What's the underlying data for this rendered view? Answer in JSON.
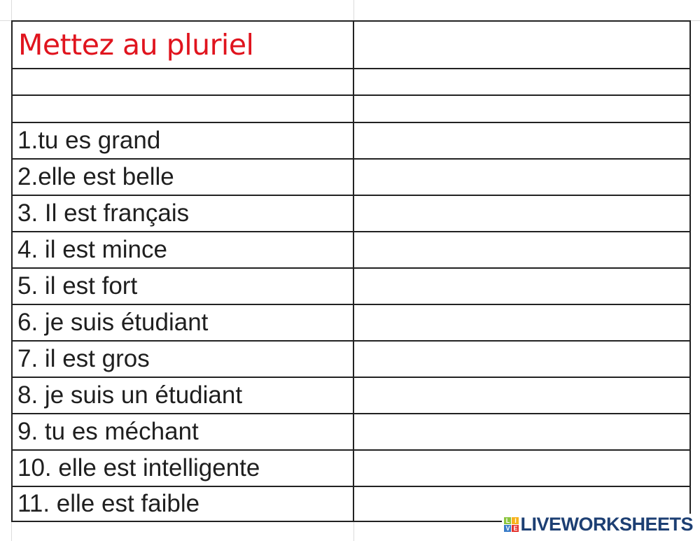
{
  "sheet": {
    "title": "Mettez au pluriel",
    "items": [
      "1.tu es grand",
      "2.elle est belle",
      "3. Il est français",
      "4. il est mince",
      "5. il est fort",
      "6. je suis étudiant",
      "7. il est gros",
      "8. je suis un étudiant",
      "9. tu es méchant",
      "10. elle est intelligente",
      "11. elle est faible"
    ]
  },
  "watermark": {
    "text": "LIVEWORKSHEETS",
    "badge_letters": [
      "L",
      "I",
      "V",
      "E"
    ],
    "badge_colors": [
      "#8cc63f",
      "#f7b21b",
      "#3a7dc9",
      "#e5322d"
    ],
    "text_color": "#1d3f73"
  },
  "colors": {
    "title": "#e0141e",
    "border": "#222222",
    "gridline": "#dcdcdc"
  }
}
